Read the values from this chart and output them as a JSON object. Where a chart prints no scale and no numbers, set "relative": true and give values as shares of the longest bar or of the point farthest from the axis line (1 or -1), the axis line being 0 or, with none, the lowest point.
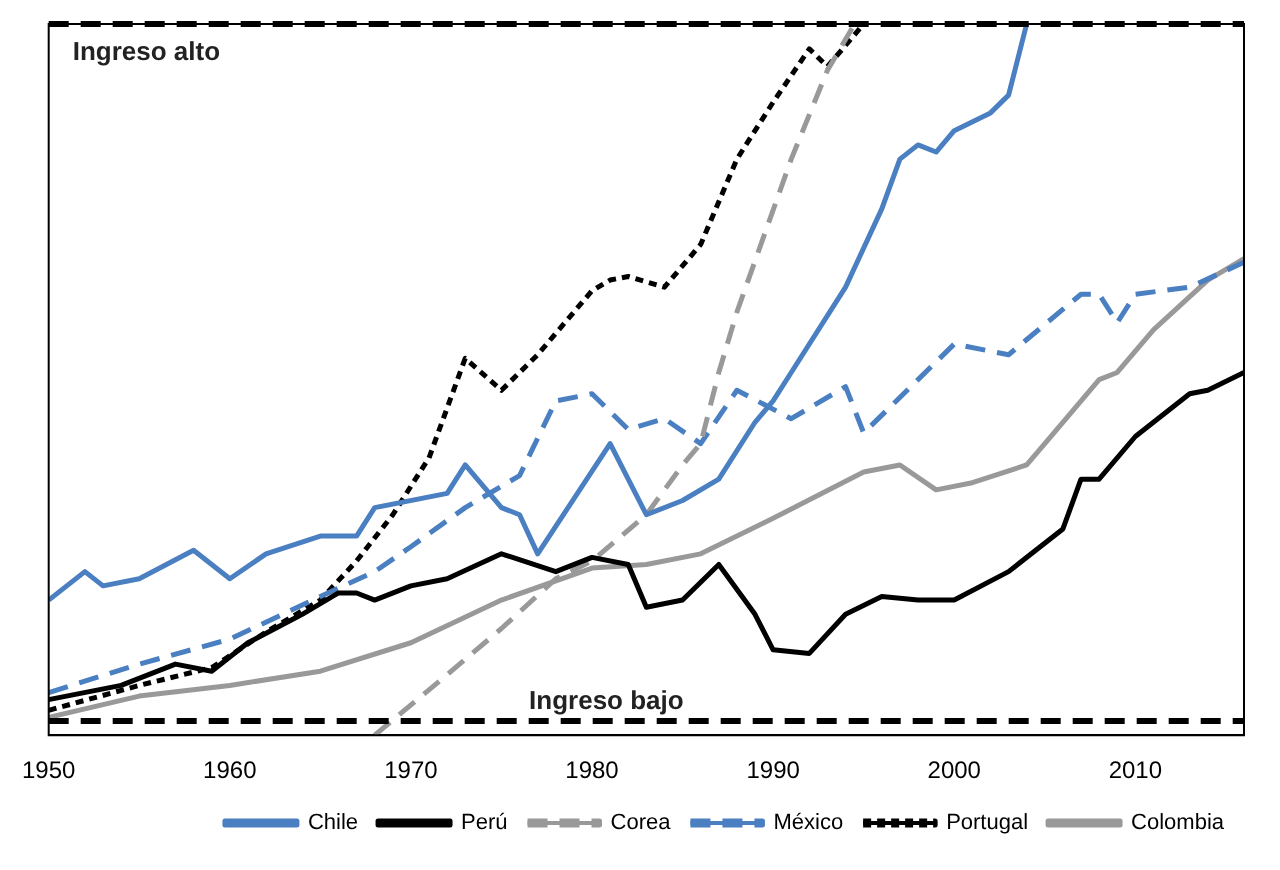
{
  "chart_data": {
    "type": "line",
    "relative": true,
    "xlim": [
      1950,
      2016
    ],
    "xticks": [
      1950,
      1960,
      1970,
      1980,
      1990,
      2000,
      2010
    ],
    "grid": false,
    "legend": "bottom right",
    "ref_lines": [
      {
        "axis": "y",
        "value": 1,
        "label": "Ingreso alto",
        "color": "#000000",
        "line_style": "dashed"
      },
      {
        "axis": "y",
        "value": 0.02,
        "label": "Ingreso bajo",
        "color": "#000000",
        "line_style": "dashed"
      }
    ],
    "series": [
      {
        "name": "Chile",
        "color": "#4a7fc1",
        "line_style": "solid",
        "x": [
          1950,
          1952,
          1953,
          1955,
          1958,
          1960,
          1962,
          1965,
          1967,
          1968,
          1972,
          1973,
          1975,
          1976,
          1977,
          1981,
          1983,
          1985,
          1987,
          1989,
          1990,
          1991,
          1994,
          1996,
          1997,
          1998,
          1999,
          2000,
          2002,
          2003,
          2004
        ],
        "values": [
          0.19,
          0.23,
          0.21,
          0.22,
          0.26,
          0.22,
          0.255,
          0.28,
          0.28,
          0.32,
          0.34,
          0.38,
          0.32,
          0.31,
          0.255,
          0.41,
          0.31,
          0.33,
          0.36,
          0.44,
          0.47,
          0.51,
          0.63,
          0.74,
          0.81,
          0.83,
          0.82,
          0.85,
          0.875,
          0.9,
          1.0
        ]
      },
      {
        "name": "Perú",
        "color": "#000000",
        "line_style": "solid",
        "x": [
          1950,
          1954,
          1957,
          1959,
          1961,
          1964,
          1966,
          1967,
          1968,
          1970,
          1972,
          1975,
          1978,
          1980,
          1982,
          1983,
          1985,
          1987,
          1989,
          1990,
          1992,
          1994,
          1996,
          1998,
          2000,
          2003,
          2006,
          2007,
          2008,
          2010,
          2013,
          2014,
          2016
        ],
        "values": [
          0.05,
          0.07,
          0.1,
          0.09,
          0.13,
          0.17,
          0.2,
          0.2,
          0.19,
          0.21,
          0.22,
          0.255,
          0.23,
          0.25,
          0.24,
          0.18,
          0.19,
          0.24,
          0.17,
          0.12,
          0.115,
          0.17,
          0.195,
          0.19,
          0.19,
          0.23,
          0.29,
          0.36,
          0.36,
          0.42,
          0.48,
          0.485,
          0.51
        ]
      },
      {
        "name": "Corea",
        "color": "#999999",
        "line_style": "dashed",
        "x": [
          1968,
          1972,
          1975,
          1978,
          1980,
          1983,
          1985,
          1986,
          1987,
          1988,
          1991,
          1993,
          1994.5
        ],
        "values": [
          0,
          0.085,
          0.15,
          0.22,
          0.245,
          0.31,
          0.38,
          0.41,
          0.51,
          0.595,
          0.81,
          0.935,
          1.0
        ]
      },
      {
        "name": "México",
        "color": "#4a7fc1",
        "line_style": "dashed",
        "x": [
          1950,
          1955,
          1960,
          1965,
          1968,
          1970,
          1973,
          1976,
          1978,
          1980,
          1982,
          1984,
          1986,
          1988,
          1991,
          1994,
          1995,
          1998,
          2000,
          2003,
          2007,
          2008,
          2009,
          2010,
          2013,
          2016
        ],
        "values": [
          0.06,
          0.1,
          0.135,
          0.195,
          0.23,
          0.265,
          0.32,
          0.365,
          0.47,
          0.48,
          0.43,
          0.445,
          0.41,
          0.485,
          0.445,
          0.49,
          0.425,
          0.5,
          0.55,
          0.535,
          0.62,
          0.62,
          0.58,
          0.62,
          0.63,
          0.665
        ]
      },
      {
        "name": "Portugal",
        "color": "#000000",
        "line_style": "dotted",
        "x": [
          1950,
          1955,
          1959,
          1962,
          1965,
          1967,
          1969,
          1971,
          1972,
          1973,
          1975,
          1977,
          1980,
          1981,
          1982,
          1984,
          1986,
          1988,
          1990,
          1992,
          1993,
          1995
        ],
        "values": [
          0.035,
          0.07,
          0.095,
          0.145,
          0.19,
          0.245,
          0.31,
          0.39,
          0.46,
          0.53,
          0.485,
          0.535,
          0.625,
          0.64,
          0.645,
          0.63,
          0.69,
          0.81,
          0.89,
          0.965,
          0.94,
          1.0
        ]
      },
      {
        "name": "Colombia",
        "color": "#999999",
        "line_style": "solid",
        "x": [
          1950,
          1955,
          1960,
          1965,
          1970,
          1975,
          1980,
          1983,
          1986,
          1990,
          1995,
          1997,
          1999,
          2001,
          2004,
          2006,
          2008,
          2009,
          2011,
          2014,
          2016
        ],
        "values": [
          0.025,
          0.055,
          0.07,
          0.09,
          0.13,
          0.19,
          0.235,
          0.24,
          0.255,
          0.305,
          0.37,
          0.38,
          0.345,
          0.355,
          0.38,
          0.44,
          0.5,
          0.51,
          0.57,
          0.64,
          0.67
        ]
      }
    ]
  }
}
